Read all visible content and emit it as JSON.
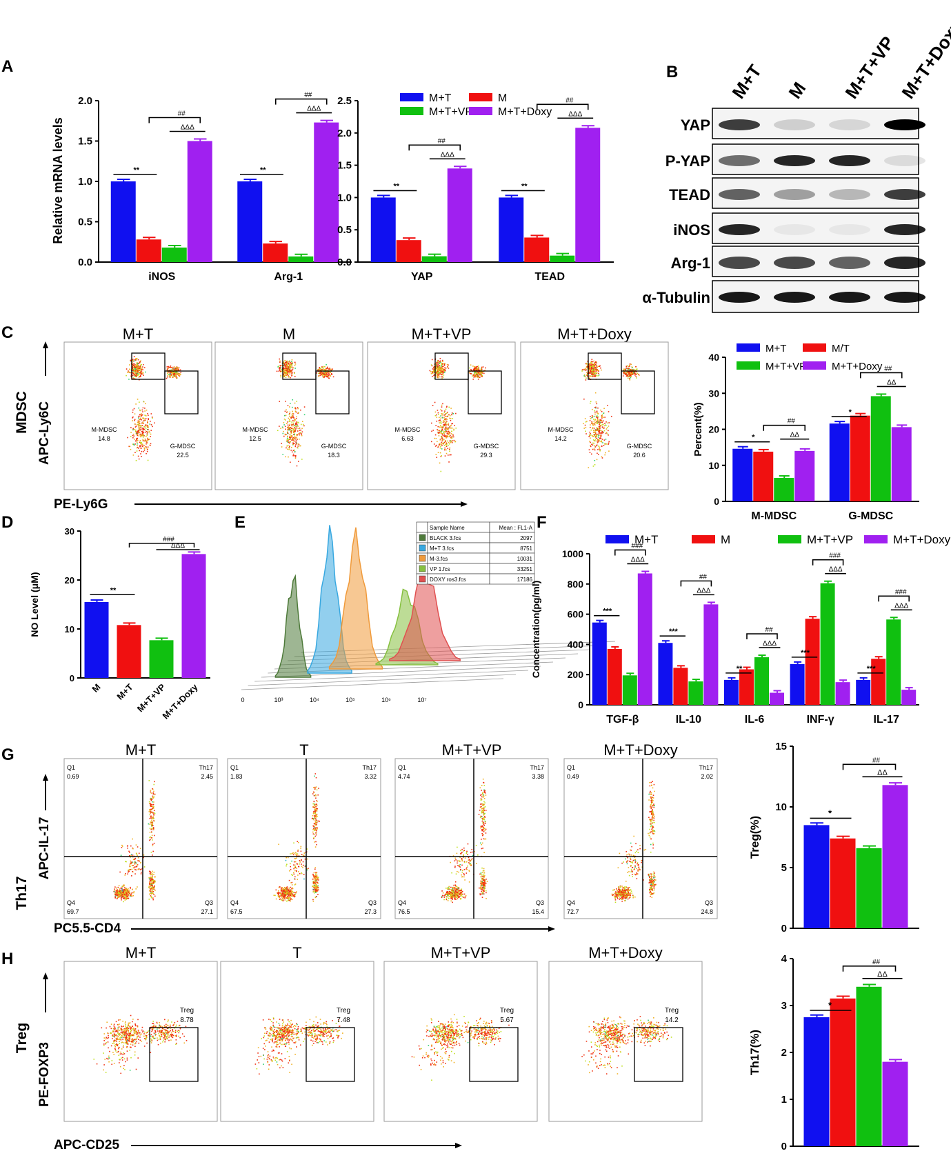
{
  "colors": {
    "blue": "#1010f0",
    "red": "#f01010",
    "green": "#10c010",
    "purple": "#a020f0",
    "black": "#000000"
  },
  "panels": {
    "A": {
      "label": "A",
      "ylabel": "Relative mRNA levels",
      "legend": [
        "M+T",
        "M",
        "M+T+VP",
        "M+T+Doxy"
      ],
      "charts": [
        {
          "categories": [
            "iNOS",
            "Arg-1"
          ],
          "ylim": [
            0,
            2.0
          ],
          "ticks": [
            "0.0",
            "0.5",
            "1.0",
            "1.5",
            "2.0"
          ],
          "series": [
            {
              "name": "M+T",
              "values": [
                1.0,
                1.0
              ]
            },
            {
              "name": "M",
              "values": [
                0.28,
                0.23
              ]
            },
            {
              "name": "M+T+VP",
              "values": [
                0.18,
                0.07
              ]
            },
            {
              "name": "M+T+Doxy",
              "values": [
                1.5,
                1.73
              ]
            }
          ],
          "sig": [
            [
              "**",
              "##",
              "ΔΔΔ"
            ],
            [
              "**",
              "##",
              "ΔΔΔ"
            ]
          ]
        },
        {
          "categories": [
            "YAP",
            "TEAD"
          ],
          "ylim": [
            0,
            2.5
          ],
          "ticks": [
            "0.0",
            "0.5",
            "1.0",
            "1.5",
            "2.0",
            "2.5"
          ],
          "series": [
            {
              "name": "M+T",
              "values": [
                1.0,
                1.0
              ]
            },
            {
              "name": "M",
              "values": [
                0.34,
                0.38
              ]
            },
            {
              "name": "M+T+VP",
              "values": [
                0.09,
                0.1
              ]
            },
            {
              "name": "M+T+Doxy",
              "values": [
                1.45,
                2.08
              ]
            }
          ],
          "sig": [
            [
              "**",
              "##",
              "ΔΔΔ"
            ],
            [
              "**",
              "##",
              "ΔΔΔ"
            ]
          ]
        }
      ]
    },
    "B": {
      "label": "B",
      "lanes": [
        "M+T",
        "M",
        "M+T+VP",
        "M+T+Doxy"
      ],
      "rows": [
        "YAP",
        "P-YAP",
        "TEAD",
        "iNOS",
        "Arg-1",
        "α-Tubulin"
      ]
    },
    "C": {
      "label": "C",
      "titles": [
        "M+T",
        "M",
        "M+T+VP",
        "M+T+Doxy"
      ],
      "mmdsc_label": "M-MDSC",
      "gmdsc_label": "G-MDSC",
      "mmdsc": [
        "14.8",
        "12.5",
        "6.63",
        "14.2"
      ],
      "gmdsc": [
        "22.5",
        "18.3",
        "29.3",
        "20.6"
      ],
      "ylabel_side": "MDSC",
      "yaxis": "APC-Ly6C",
      "xaxis": "PE-Ly6G",
      "bar": {
        "legend": [
          "M+T",
          "M/T",
          "M+T+VP",
          "M+T+Doxy"
        ],
        "ylabel": "Percent(%)",
        "categories": [
          "M-MDSC",
          "G-MDSC"
        ],
        "ylim": [
          0,
          40
        ],
        "ticks": [
          "0",
          "10",
          "20",
          "30",
          "40"
        ],
        "series": [
          {
            "name": "M+T",
            "values": [
              14.6,
              21.6
            ]
          },
          {
            "name": "M/T",
            "values": [
              13.8,
              23.8
            ]
          },
          {
            "name": "M+T+VP",
            "values": [
              6.5,
              29.2
            ]
          },
          {
            "name": "M+T+Doxy",
            "values": [
              14.0,
              20.6
            ]
          }
        ],
        "sig": [
          [
            "*",
            "##",
            "ΔΔ"
          ],
          [
            "*",
            "##",
            "ΔΔ"
          ]
        ]
      }
    },
    "D": {
      "label": "D",
      "ylabel": "NO Level (μM)",
      "categories": [
        "M",
        "M+T",
        "M+T+VP",
        "M+T+Doxy"
      ],
      "values": [
        15.5,
        10.8,
        7.7,
        25.3
      ],
      "ylim": [
        0,
        30
      ],
      "ticks": [
        "0",
        "10",
        "20",
        "30"
      ],
      "sig": [
        "**",
        "###",
        "ΔΔΔ"
      ]
    },
    "E": {
      "label": "E",
      "headers": [
        "Sample Name",
        "Mean : FL1-A"
      ],
      "rows": [
        [
          "BLACK 3.fcs",
          "2097"
        ],
        [
          "M+T 3.fcs",
          "8751"
        ],
        [
          "M-3.fcs",
          "10031"
        ],
        [
          "VP 1.fcs",
          "33251"
        ],
        [
          "DOXY ros3.fcs",
          "17186"
        ]
      ],
      "colors": [
        "#4e7a3a",
        "#38a8e0",
        "#f09a3a",
        "#86c040",
        "#e05050"
      ],
      "xticks": [
        "0",
        "10³",
        "10⁴",
        "10⁵",
        "10⁶",
        "10⁷"
      ]
    },
    "F": {
      "label": "F",
      "ylabel": "Concentration(pg/ml)",
      "legend": [
        "M+T",
        "M",
        "M+T+VP",
        "M+T+Doxy"
      ],
      "categories": [
        "TGF-β",
        "IL-10",
        "IL-6",
        "INF-γ",
        "IL-17"
      ],
      "ylim": [
        0,
        1000
      ],
      "ticks": [
        "0",
        "200",
        "400",
        "600",
        "800",
        "1000"
      ],
      "series": [
        {
          "name": "M+T",
          "values": [
            545,
            410,
            165,
            270,
            165
          ]
        },
        {
          "name": "M",
          "values": [
            370,
            245,
            235,
            570,
            305
          ]
        },
        {
          "name": "M+T+VP",
          "values": [
            195,
            155,
            315,
            805,
            565
          ]
        },
        {
          "name": "M+T+Doxy",
          "values": [
            870,
            665,
            80,
            150,
            100
          ]
        }
      ],
      "sig": [
        [
          "***",
          "###",
          "ΔΔΔ"
        ],
        [
          "***",
          "##",
          "ΔΔΔ"
        ],
        [
          "**",
          "##",
          "ΔΔΔ"
        ],
        [
          "***",
          "###",
          "ΔΔΔ"
        ],
        [
          "***",
          "###",
          "ΔΔΔ"
        ]
      ]
    },
    "G": {
      "label": "G",
      "titles": [
        "M+T",
        "T",
        "M+T+VP",
        "M+T+Doxy"
      ],
      "q1": [
        "0.69",
        "1.83",
        "4.74",
        "0.49"
      ],
      "th17": [
        "2.45",
        "3.32",
        "3.38",
        "2.02"
      ],
      "q4": [
        "69.7",
        "67.5",
        "76.5",
        "72.7"
      ],
      "q3": [
        "27.1",
        "27.3",
        "15.4",
        "24.8"
      ],
      "q1_label": "Q1",
      "th17_label": "Th17",
      "q4_label": "Q4",
      "q3_label": "Q3",
      "side": "Th17",
      "yaxis": "APC-IL-17",
      "xaxis": "PC5.5-CD4",
      "bar": {
        "ylabel": "Treg(%)",
        "ylim": [
          0,
          15
        ],
        "ticks": [
          "0",
          "5",
          "10",
          "15"
        ],
        "values": [
          8.5,
          7.4,
          6.6,
          11.8
        ],
        "sig": [
          "*",
          "##",
          "ΔΔ"
        ]
      }
    },
    "H": {
      "label": "H",
      "titles": [
        "M+T",
        "T",
        "M+T+VP",
        "M+T+Doxy"
      ],
      "treg_label": "Treg",
      "treg": [
        "8.78",
        "7.48",
        "5.67",
        "14.2"
      ],
      "side": "Treg",
      "yaxis": "PE-FOXP3",
      "xaxis": "APC-CD25",
      "bar": {
        "ylabel": "Th17(%)",
        "ylim": [
          0,
          4
        ],
        "ticks": [
          "0",
          "1",
          "2",
          "3",
          "4"
        ],
        "values": [
          2.75,
          3.15,
          3.4,
          1.8
        ],
        "sig": [
          "*",
          "##",
          "ΔΔ"
        ]
      }
    }
  },
  "chart_data": [
    {
      "type": "bar",
      "title": "A (left)",
      "ylabel": "Relative mRNA levels",
      "categories": [
        "iNOS",
        "Arg-1"
      ],
      "ylim": [
        0,
        2.0
      ],
      "series": [
        {
          "name": "M+T",
          "values": [
            1.0,
            1.0
          ]
        },
        {
          "name": "M",
          "values": [
            0.28,
            0.23
          ]
        },
        {
          "name": "M+T+VP",
          "values": [
            0.18,
            0.07
          ]
        },
        {
          "name": "M+T+Doxy",
          "values": [
            1.5,
            1.73
          ]
        }
      ]
    },
    {
      "type": "bar",
      "title": "A (right)",
      "ylabel": "Relative mRNA levels",
      "categories": [
        "YAP",
        "TEAD"
      ],
      "ylim": [
        0,
        2.5
      ],
      "series": [
        {
          "name": "M+T",
          "values": [
            1.0,
            1.0
          ]
        },
        {
          "name": "M",
          "values": [
            0.34,
            0.38
          ]
        },
        {
          "name": "M+T+VP",
          "values": [
            0.09,
            0.1
          ]
        },
        {
          "name": "M+T+Doxy",
          "values": [
            1.45,
            2.08
          ]
        }
      ]
    },
    {
      "type": "bar",
      "title": "C",
      "ylabel": "Percent(%)",
      "categories": [
        "M-MDSC",
        "G-MDSC"
      ],
      "ylim": [
        0,
        40
      ],
      "series": [
        {
          "name": "M+T",
          "values": [
            14.6,
            21.6
          ]
        },
        {
          "name": "M/T",
          "values": [
            13.8,
            23.8
          ]
        },
        {
          "name": "M+T+VP",
          "values": [
            6.5,
            29.2
          ]
        },
        {
          "name": "M+T+Doxy",
          "values": [
            14.0,
            20.6
          ]
        }
      ]
    },
    {
      "type": "bar",
      "title": "D",
      "ylabel": "NO Level (μM)",
      "categories": [
        "M",
        "M+T",
        "M+T+VP",
        "M+T+Doxy"
      ],
      "values": [
        15.5,
        10.8,
        7.7,
        25.3
      ],
      "ylim": [
        0,
        30
      ]
    },
    {
      "type": "bar",
      "title": "F",
      "ylabel": "Concentration(pg/ml)",
      "categories": [
        "TGF-β",
        "IL-10",
        "IL-6",
        "INF-γ",
        "IL-17"
      ],
      "ylim": [
        0,
        1000
      ],
      "series": [
        {
          "name": "M+T",
          "values": [
            545,
            410,
            165,
            270,
            165
          ]
        },
        {
          "name": "M",
          "values": [
            370,
            245,
            235,
            570,
            305
          ]
        },
        {
          "name": "M+T+VP",
          "values": [
            195,
            155,
            315,
            805,
            565
          ]
        },
        {
          "name": "M+T+Doxy",
          "values": [
            870,
            665,
            80,
            150,
            100
          ]
        }
      ]
    },
    {
      "type": "bar",
      "title": "G",
      "ylabel": "Treg(%)",
      "categories": [
        "M+T",
        "T",
        "M+T+VP",
        "M+T+Doxy"
      ],
      "values": [
        8.5,
        7.4,
        6.6,
        11.8
      ],
      "ylim": [
        0,
        15
      ]
    },
    {
      "type": "bar",
      "title": "H",
      "ylabel": "Th17(%)",
      "categories": [
        "M+T",
        "T",
        "M+T+VP",
        "M+T+Doxy"
      ],
      "values": [
        2.75,
        3.15,
        3.4,
        1.8
      ],
      "ylim": [
        0,
        4
      ]
    }
  ]
}
